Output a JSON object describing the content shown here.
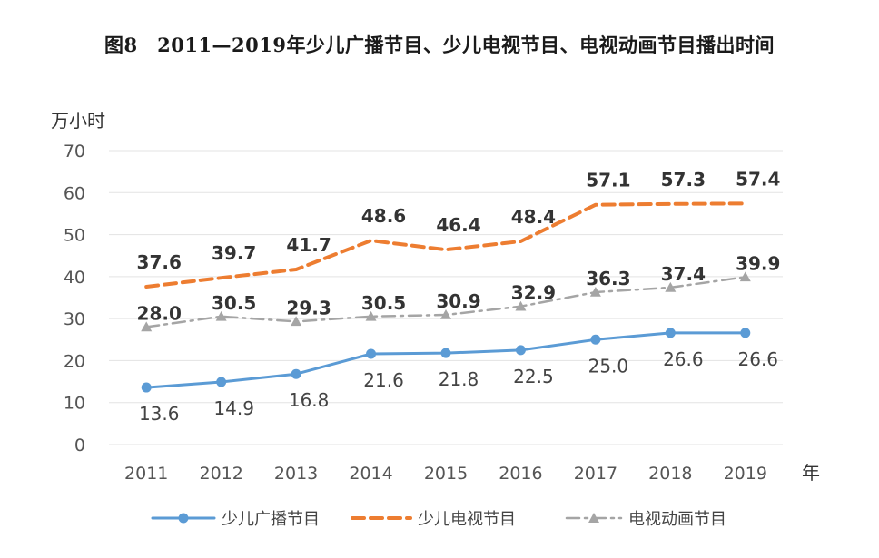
{
  "title": "图8　2011—2019年少儿广播节目、少儿电视节目、电视动画节目播出时间",
  "chart_data": {
    "type": "line",
    "title": "图8　2011—2019年少儿广播节目、少儿电视节目、电视动画节目播出时间",
    "ylabel": "万小时",
    "xlabel": "年",
    "x": [
      "2011",
      "2012",
      "2013",
      "2014",
      "2015",
      "2016",
      "2017",
      "2018",
      "2019"
    ],
    "yticks": [
      "0",
      "10",
      "20",
      "30",
      "40",
      "50",
      "60",
      "70"
    ],
    "ylim": [
      0,
      70
    ],
    "grid": true,
    "legend": "bottom",
    "series": [
      {
        "name": "少儿广播节目",
        "color": "#5b9bd5",
        "style": "solid",
        "marker": "circle",
        "values": [
          13.6,
          14.9,
          16.8,
          21.6,
          21.8,
          22.5,
          25.0,
          26.6,
          26.6
        ],
        "labels": [
          "13.6",
          "14.9",
          "16.8",
          "21.6",
          "21.8",
          "22.5",
          "25.0",
          "26.6",
          "26.6"
        ]
      },
      {
        "name": "少儿电视节目",
        "color": "#ed7d31",
        "style": "dashed",
        "marker": "none",
        "values": [
          37.6,
          39.7,
          41.7,
          48.6,
          46.4,
          48.4,
          57.1,
          57.3,
          57.4
        ],
        "labels": [
          "37.6",
          "39.7",
          "41.7",
          "48.6",
          "46.4",
          "48.4",
          "57.1",
          "57.3",
          "57.4"
        ]
      },
      {
        "name": "电视动画节目",
        "color": "#a5a5a5",
        "style": "dashdot",
        "marker": "triangle",
        "values": [
          28.0,
          30.5,
          29.3,
          30.5,
          30.9,
          32.9,
          36.3,
          37.4,
          39.9
        ],
        "labels": [
          "28.0",
          "30.5",
          "29.3",
          "30.5",
          "30.9",
          "32.9",
          "36.3",
          "37.4",
          "39.9"
        ]
      }
    ]
  }
}
